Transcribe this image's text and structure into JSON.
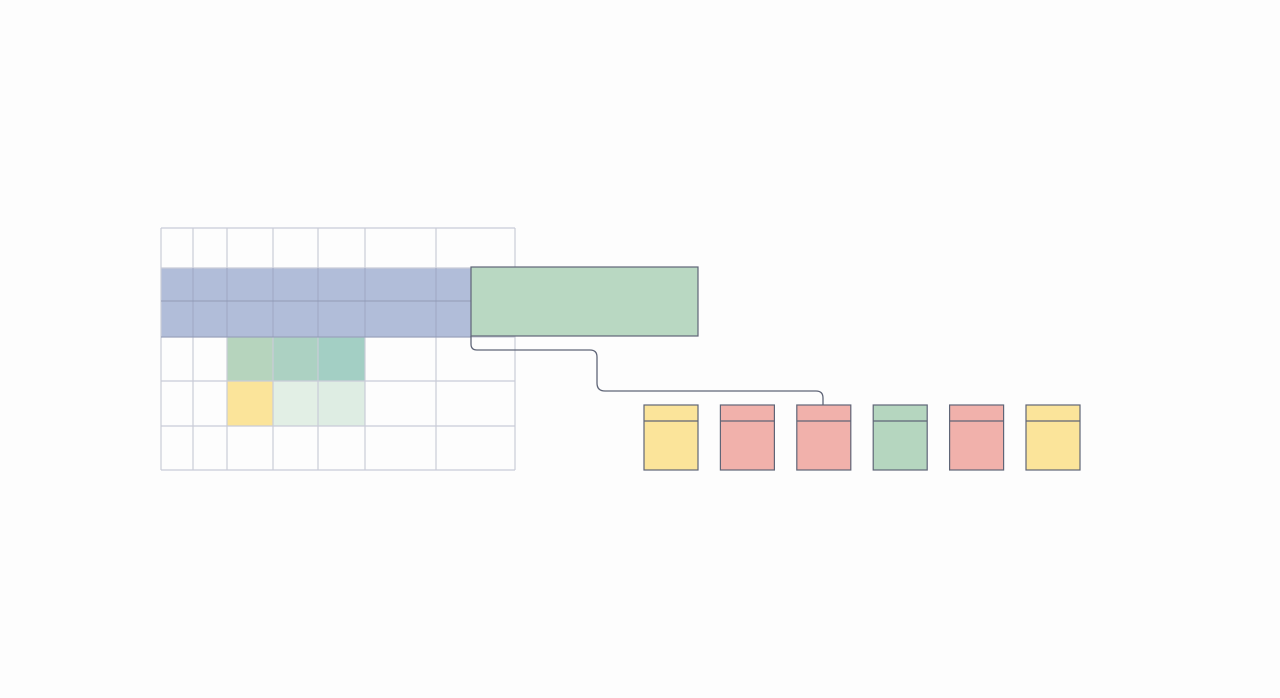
{
  "colors": {
    "background": "#fdfdfd",
    "grid_line": "#c9ccd8",
    "outline": "#5f6577",
    "blue_band": "#b1bdd9",
    "green_box": "#b9d8c2",
    "green_cells": [
      "#b6d4bd",
      "#acd1c2",
      "#a3cfc4"
    ],
    "light_green_cells": [
      "#e2efe5",
      "#deede3"
    ],
    "yellow": "#fbe49a",
    "red": "#f1b1ab",
    "green": "#b5d6bf"
  },
  "cards": [
    {
      "color": "yellow"
    },
    {
      "color": "red"
    },
    {
      "color": "red",
      "connected": true
    },
    {
      "color": "green"
    },
    {
      "color": "red"
    },
    {
      "color": "yellow"
    }
  ]
}
